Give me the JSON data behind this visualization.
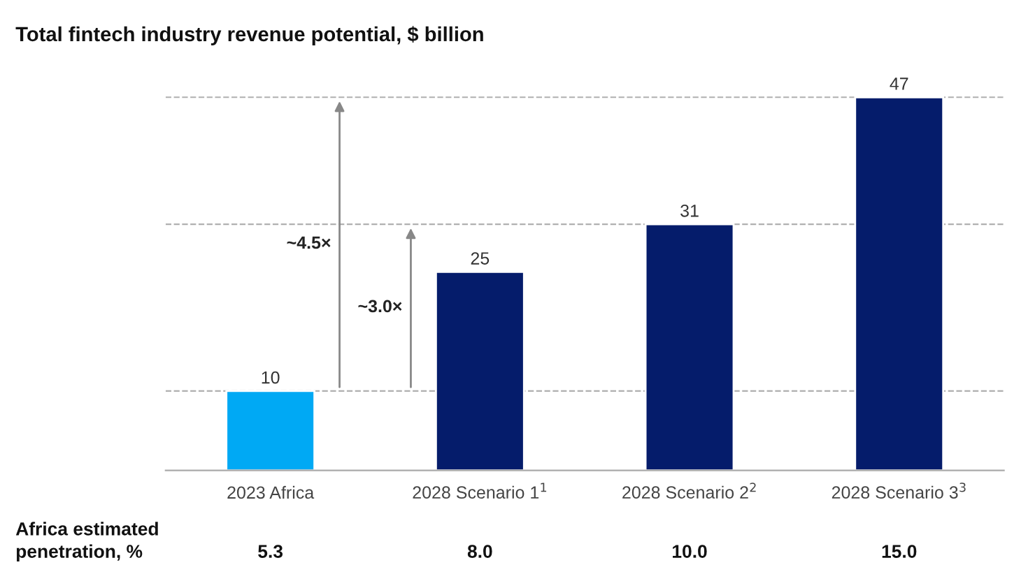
{
  "chart_data": {
    "type": "bar",
    "title": "Total fintech industry revenue potential, $ billion",
    "categories": [
      "2023 Africa",
      "2028 Scenario 1$^{1}$",
      "2028 Scenario 2$^{2}$",
      "2028 Scenario 3$^{3}$"
    ],
    "values": [
      10,
      25,
      31,
      47
    ],
    "colors": [
      "#00a9f4",
      "#051c6b",
      "#051c6b",
      "#051c6b"
    ],
    "data_labels": true,
    "ref_lines": [
      {
        "axis": "y",
        "value": 10,
        "color": "#b0b0b0",
        "line_style": "dashed"
      },
      {
        "axis": "y",
        "value": 31,
        "color": "#b0b0b0",
        "line_style": "dashed"
      },
      {
        "axis": "y",
        "value": 47,
        "color": "#b0b0b0",
        "line_style": "dashed"
      }
    ],
    "annotations": [
      "~4.5×",
      "~3.0×",
      "Africa estimated\npenetration, %",
      "5.3",
      "8.0",
      "10.0",
      "15.0"
    ]
  }
}
